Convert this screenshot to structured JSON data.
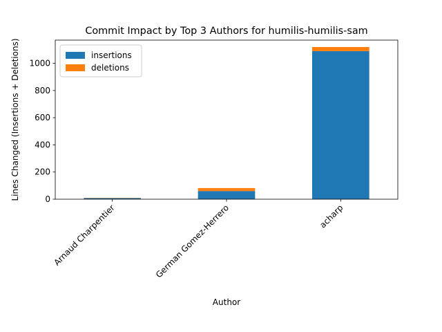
{
  "chart_data": {
    "type": "bar",
    "stacked": true,
    "title": "Commit Impact by Top 3 Authors for humilis-humilis-sam",
    "xlabel": "Author",
    "ylabel": "Lines Changed (Insertions + Deletions)",
    "categories": [
      "Arnaud Charpentier",
      "German Gomez-Herrero",
      "acharp"
    ],
    "series": [
      {
        "name": "insertions",
        "values": [
          8,
          60,
          1090
        ],
        "color": "#1f77b4"
      },
      {
        "name": "deletions",
        "values": [
          2,
          22,
          30
        ],
        "color": "#ff7f0e"
      }
    ],
    "ylim": [
      0,
      1171
    ],
    "yticks": [
      0,
      200,
      400,
      600,
      800,
      1000
    ],
    "legend_position": "upper-left",
    "grid": false
  }
}
